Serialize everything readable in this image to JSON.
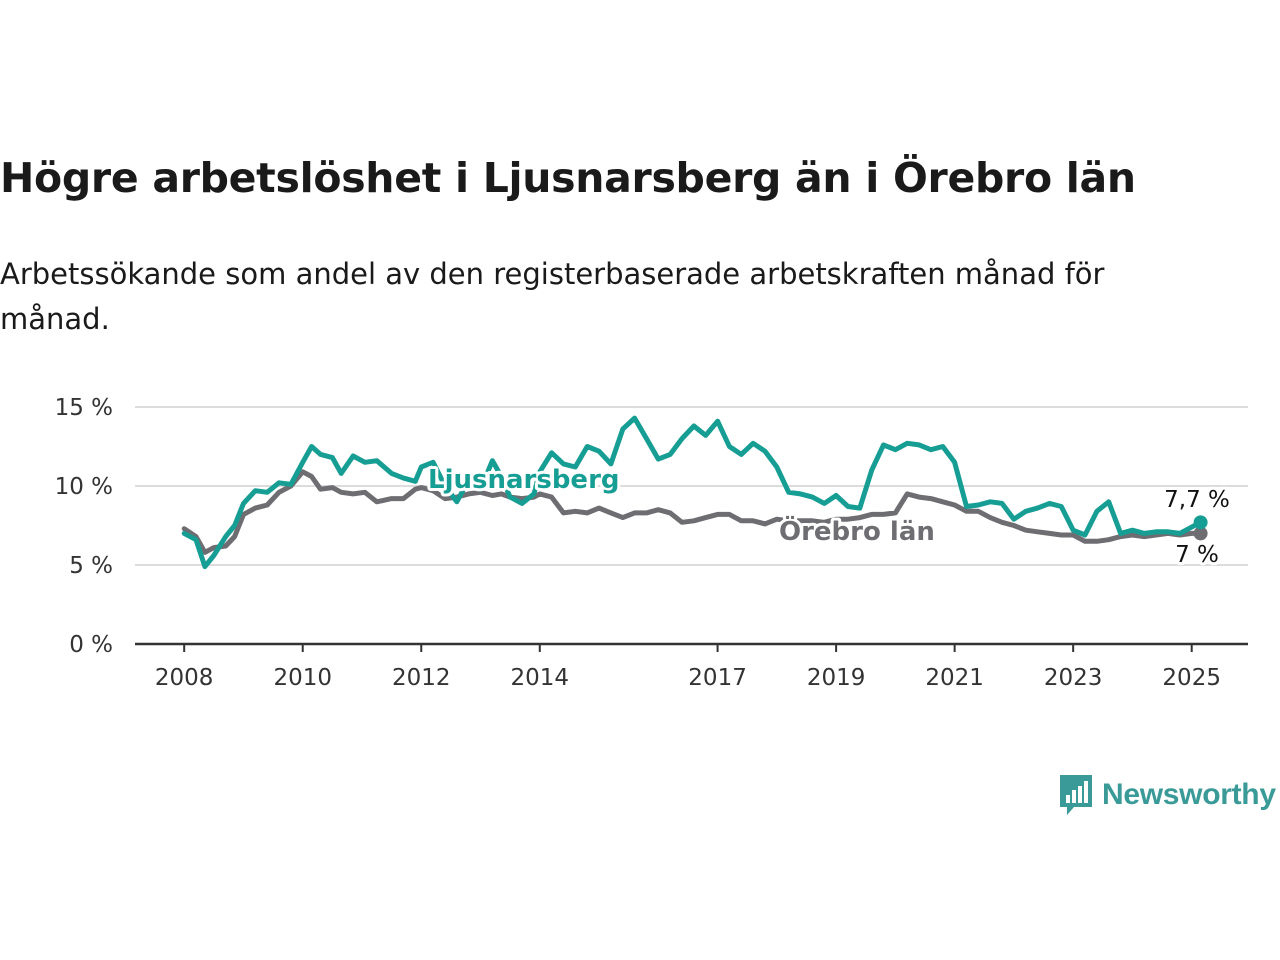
{
  "title": "Högre arbetslöshet i Ljusnarsberg än i Örebro län",
  "subtitle": "Arbetssökande som andel av den registerbaserade arbetskraften månad för månad.",
  "brand": {
    "name": "Newsworthy",
    "icon": "newsworthy-logo-icon",
    "color": "#3a9a97"
  },
  "chart_data": {
    "type": "line",
    "x_ticks": [
      "2008",
      "2010",
      "2012",
      "2014",
      "2017",
      "2019",
      "2021",
      "2023",
      "2025"
    ],
    "x_tick_values": [
      2008.0,
      2010.0,
      2012.0,
      2014.0,
      2017.0,
      2019.0,
      2021.0,
      2023.0,
      2025.0
    ],
    "y_ticks": [
      "0 %",
      "5 %",
      "10 %",
      "15 %"
    ],
    "y_tick_values": [
      0,
      5,
      10,
      15
    ],
    "xlim": [
      2007.17,
      2025.95
    ],
    "ylim": [
      0,
      15
    ],
    "grid": true,
    "series": [
      {
        "name": "Ljusnarsberg",
        "color": "#179e94",
        "end_label": "7,7 %",
        "end_value": 7.7,
        "x": [
          2008.0,
          2008.2,
          2008.35,
          2008.5,
          2008.7,
          2008.85,
          2009.0,
          2009.2,
          2009.4,
          2009.6,
          2009.8,
          2010.0,
          2010.15,
          2010.3,
          2010.5,
          2010.65,
          2010.85,
          2011.05,
          2011.25,
          2011.5,
          2011.7,
          2011.9,
          2012.0,
          2012.2,
          2012.4,
          2012.6,
          2012.8,
          2013.0,
          2013.2,
          2013.35,
          2013.5,
          2013.7,
          2013.9,
          2014.0,
          2014.2,
          2014.4,
          2014.6,
          2014.8,
          2015.0,
          2015.2,
          2015.4,
          2015.6,
          2015.8,
          2016.0,
          2016.2,
          2016.4,
          2016.6,
          2016.8,
          2017.0,
          2017.2,
          2017.4,
          2017.6,
          2017.8,
          2018.0,
          2018.2,
          2018.4,
          2018.6,
          2018.8,
          2019.0,
          2019.2,
          2019.4,
          2019.6,
          2019.8,
          2020.0,
          2020.2,
          2020.4,
          2020.6,
          2020.8,
          2021.0,
          2021.2,
          2021.4,
          2021.6,
          2021.8,
          2022.0,
          2022.2,
          2022.4,
          2022.6,
          2022.8,
          2023.0,
          2023.2,
          2023.4,
          2023.6,
          2023.8,
          2024.0,
          2024.2,
          2024.4,
          2024.6,
          2024.8,
          2025.0,
          2025.15
        ],
        "y": [
          7.0,
          6.6,
          4.9,
          5.6,
          6.8,
          7.5,
          8.9,
          9.7,
          9.6,
          10.2,
          10.1,
          11.5,
          12.5,
          12.0,
          11.8,
          10.8,
          11.9,
          11.5,
          11.6,
          10.8,
          10.5,
          10.3,
          11.2,
          11.5,
          10.0,
          9.0,
          10.4,
          9.8,
          11.6,
          10.6,
          9.3,
          8.9,
          9.5,
          10.9,
          12.1,
          11.4,
          11.2,
          12.5,
          12.2,
          11.4,
          13.6,
          14.3,
          13.0,
          11.7,
          12.0,
          13.0,
          13.8,
          13.2,
          14.1,
          12.5,
          12.0,
          12.7,
          12.2,
          11.2,
          9.6,
          9.5,
          9.3,
          8.9,
          9.4,
          8.7,
          8.6,
          11.0,
          12.6,
          12.3,
          12.7,
          12.6,
          12.3,
          12.5,
          11.5,
          8.7,
          8.8,
          9.0,
          8.9,
          7.9,
          8.4,
          8.6,
          8.9,
          8.7,
          7.2,
          6.9,
          8.4,
          9.0,
          7.0,
          7.2,
          7.0,
          7.1,
          7.1,
          7.0,
          7.4,
          7.7
        ]
      },
      {
        "name": "Örebro län",
        "color": "#6e6d72",
        "end_label": "7 %",
        "end_value": 7.0,
        "x": [
          2008.0,
          2008.2,
          2008.35,
          2008.5,
          2008.7,
          2008.85,
          2009.0,
          2009.2,
          2009.4,
          2009.6,
          2009.8,
          2010.0,
          2010.15,
          2010.3,
          2010.5,
          2010.65,
          2010.85,
          2011.05,
          2011.25,
          2011.5,
          2011.7,
          2011.9,
          2012.0,
          2012.2,
          2012.4,
          2012.6,
          2012.8,
          2013.0,
          2013.2,
          2013.35,
          2013.5,
          2013.7,
          2013.9,
          2014.0,
          2014.2,
          2014.4,
          2014.6,
          2014.8,
          2015.0,
          2015.2,
          2015.4,
          2015.6,
          2015.8,
          2016.0,
          2016.2,
          2016.4,
          2016.6,
          2016.8,
          2017.0,
          2017.2,
          2017.4,
          2017.6,
          2017.8,
          2018.0,
          2018.2,
          2018.4,
          2018.6,
          2018.8,
          2019.0,
          2019.2,
          2019.4,
          2019.6,
          2019.8,
          2020.0,
          2020.2,
          2020.4,
          2020.6,
          2020.8,
          2021.0,
          2021.2,
          2021.4,
          2021.6,
          2021.8,
          2022.0,
          2022.2,
          2022.4,
          2022.6,
          2022.8,
          2023.0,
          2023.2,
          2023.4,
          2023.6,
          2023.8,
          2024.0,
          2024.2,
          2024.4,
          2024.6,
          2024.8,
          2025.0,
          2025.15
        ],
        "y": [
          7.3,
          6.8,
          5.8,
          6.1,
          6.2,
          6.8,
          8.2,
          8.6,
          8.8,
          9.6,
          10.0,
          10.9,
          10.6,
          9.8,
          9.9,
          9.6,
          9.5,
          9.6,
          9.0,
          9.2,
          9.2,
          9.8,
          9.9,
          9.7,
          9.2,
          9.3,
          9.5,
          9.6,
          9.4,
          9.5,
          9.3,
          9.2,
          9.3,
          9.5,
          9.3,
          8.3,
          8.4,
          8.3,
          8.6,
          8.3,
          8.0,
          8.3,
          8.3,
          8.5,
          8.3,
          7.7,
          7.8,
          8.0,
          8.2,
          8.2,
          7.8,
          7.8,
          7.6,
          7.9,
          7.8,
          7.8,
          7.8,
          7.7,
          7.9,
          7.9,
          8.0,
          8.2,
          8.2,
          8.3,
          9.5,
          9.3,
          9.2,
          9.0,
          8.8,
          8.4,
          8.4,
          8.0,
          7.7,
          7.5,
          7.2,
          7.1,
          7.0,
          6.9,
          6.9,
          6.5,
          6.5,
          6.6,
          6.8,
          6.9,
          6.8,
          6.9,
          7.0,
          6.9,
          7.0,
          7.0
        ]
      }
    ]
  }
}
